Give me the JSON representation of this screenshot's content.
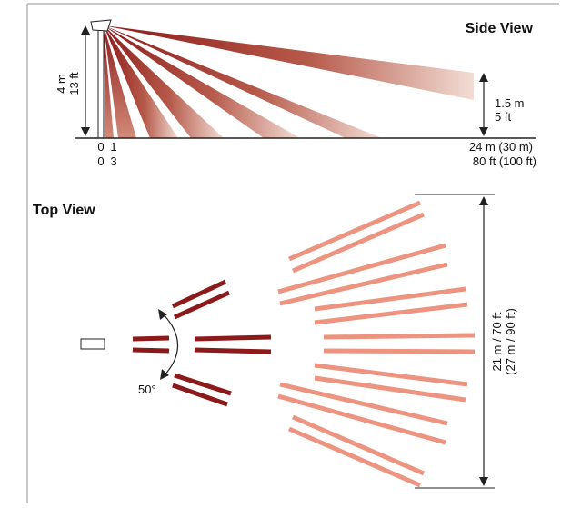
{
  "side_view": {
    "title": "Side View",
    "height_labels": [
      "4 m",
      "13 ft"
    ],
    "target_height_labels": [
      "1.5 m",
      "5 ft"
    ],
    "axis_metric": [
      "0",
      "1",
      "24 m (30 m)"
    ],
    "axis_imperial": [
      "0",
      "3",
      "80 ft (100 ft)"
    ]
  },
  "top_view": {
    "title": "Top View",
    "angle_label": "50°",
    "width_labels": [
      "21 m / 70 ft",
      "(27 m / 90 ft)"
    ]
  },
  "colors": {
    "beam_dark": "#8c1a1a",
    "beam_light": "#f0a090",
    "border": "#c8c8c8",
    "line": "#222222"
  }
}
